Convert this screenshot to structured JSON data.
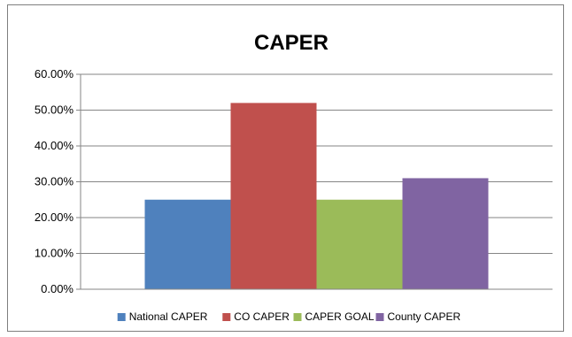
{
  "chart_data": {
    "type": "bar",
    "title": "CAPER",
    "xlabel": "",
    "ylabel": "",
    "ylim": [
      0,
      60
    ],
    "yticks": [
      "0.00%",
      "10.00%",
      "20.00%",
      "30.00%",
      "40.00%",
      "50.00%",
      "60.00%"
    ],
    "grid": true,
    "legend_position": "bottom",
    "series": [
      {
        "name": "National CAPER",
        "value": 25.0,
        "color": "#4f81bd"
      },
      {
        "name": "CO CAPER",
        "value": 52.0,
        "color": "#c0504d"
      },
      {
        "name": "CAPER GOAL",
        "value": 25.0,
        "color": "#9bbb59"
      },
      {
        "name": "County CAPER",
        "value": 31.0,
        "color": "#8064a2"
      }
    ]
  }
}
